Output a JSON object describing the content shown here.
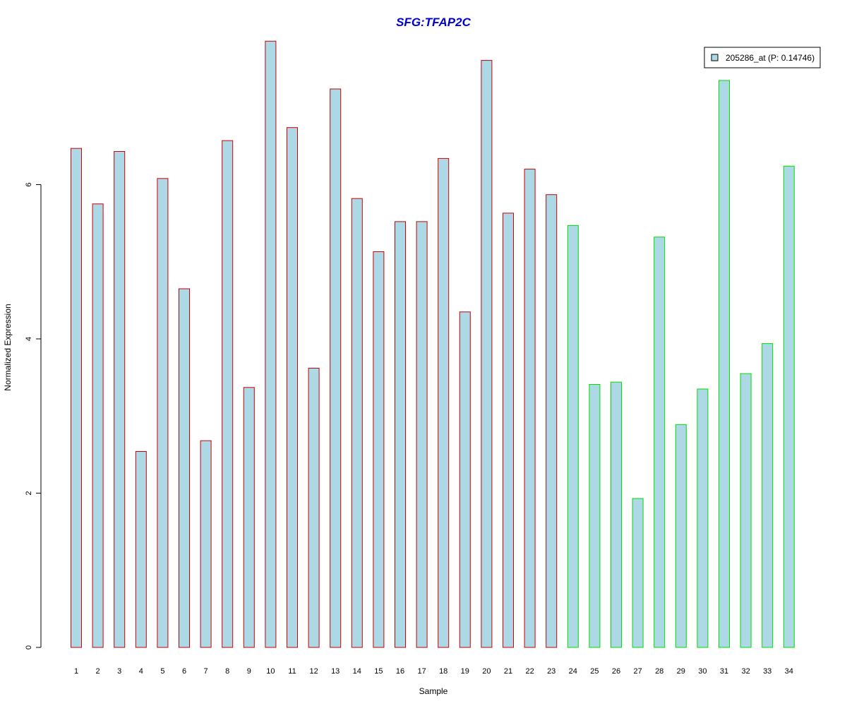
{
  "chart_data": {
    "type": "bar",
    "title": "SFG:TFAP2C",
    "xlabel": "Sample",
    "ylabel": "Normalized Expression",
    "ylim": [
      0,
      7.9
    ],
    "yticks": [
      0,
      2,
      4,
      6
    ],
    "grid": false,
    "legend_position": "top-right",
    "categories": [
      "1",
      "2",
      "3",
      "4",
      "5",
      "6",
      "7",
      "8",
      "9",
      "10",
      "11",
      "12",
      "13",
      "14",
      "15",
      "16",
      "17",
      "18",
      "19",
      "20",
      "21",
      "22",
      "23",
      "24",
      "25",
      "26",
      "27",
      "28",
      "29",
      "30",
      "31",
      "32",
      "33",
      "34"
    ],
    "series": [
      {
        "name": "205286_at (P: 0.14746)",
        "values": [
          6.47,
          5.75,
          6.43,
          2.54,
          6.08,
          4.65,
          2.68,
          6.57,
          3.37,
          7.86,
          6.74,
          3.62,
          7.24,
          5.82,
          5.13,
          5.52,
          5.52,
          6.34,
          4.35,
          7.61,
          5.63,
          6.2,
          5.87,
          5.47,
          3.41,
          3.44,
          1.93,
          5.32,
          2.89,
          3.35,
          7.35,
          3.55,
          3.94,
          6.24
        ]
      }
    ],
    "group_border_colors": [
      "#cc0000",
      "#cc0000",
      "#cc0000",
      "#cc0000",
      "#cc0000",
      "#cc0000",
      "#cc0000",
      "#cc0000",
      "#cc0000",
      "#cc0000",
      "#cc0000",
      "#cc0000",
      "#cc0000",
      "#cc0000",
      "#cc0000",
      "#cc0000",
      "#cc0000",
      "#cc0000",
      "#cc0000",
      "#cc0000",
      "#cc0000",
      "#cc0000",
      "#cc0000",
      "#00dd00",
      "#00dd00",
      "#00dd00",
      "#00dd00",
      "#00dd00",
      "#00dd00",
      "#00dd00",
      "#00dd00",
      "#00dd00",
      "#00dd00",
      "#00dd00"
    ],
    "colors": {
      "bar_fill": "#add8e6",
      "title": "#0000cc",
      "axis": "#000000"
    }
  }
}
